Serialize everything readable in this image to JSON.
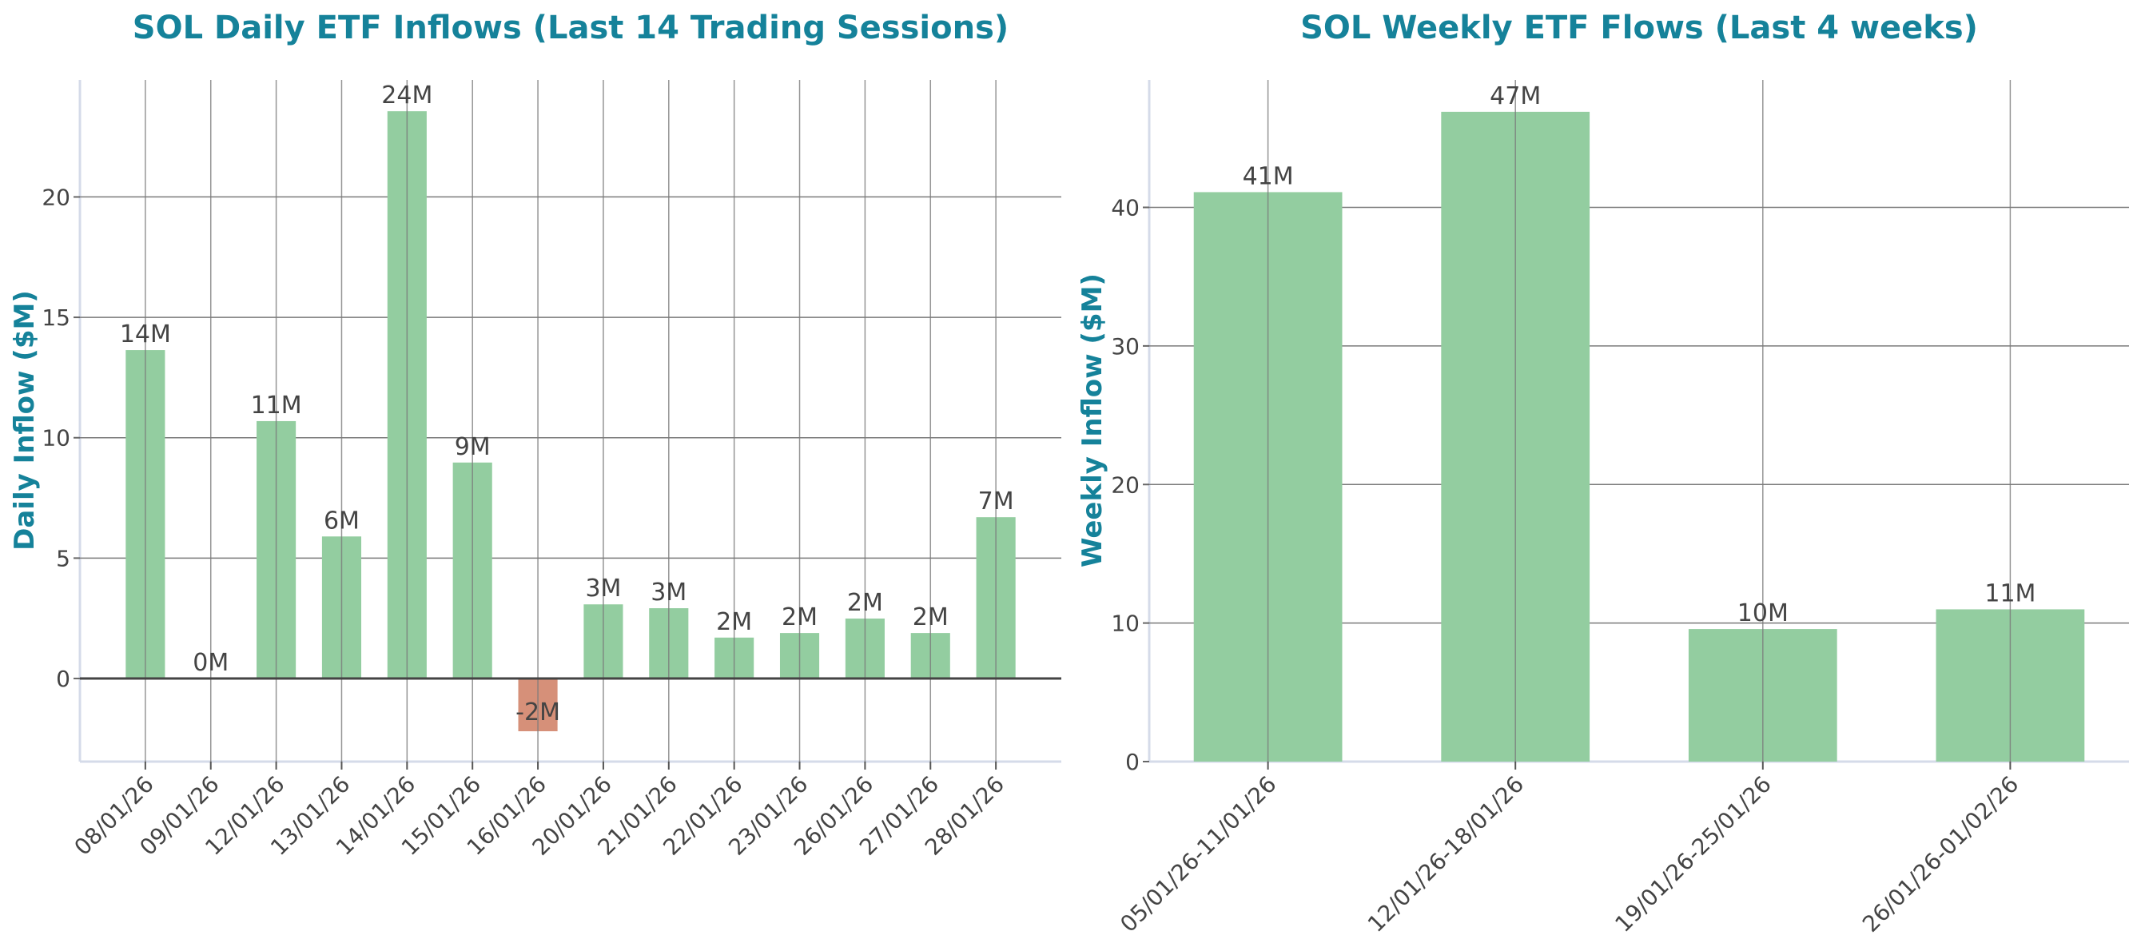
{
  "colors": {
    "title": "#15829a",
    "positive": "#93cda0",
    "negative": "#d69079",
    "text": "#444444",
    "grid": "#7a7a7a",
    "spine": "#d5dbe9"
  },
  "chart_data": [
    {
      "type": "bar",
      "title": "SOL Daily ETF Inflows (Last 14 Trading Sessions)",
      "xlabel": "",
      "ylabel": "Daily Inflow ($M)",
      "categories": [
        "08/01/26",
        "09/01/26",
        "12/01/26",
        "13/01/26",
        "14/01/26",
        "15/01/26",
        "16/01/26",
        "20/01/26",
        "21/01/26",
        "22/01/26",
        "23/01/26",
        "26/01/26",
        "27/01/26",
        "28/01/26"
      ],
      "values": [
        13.64,
        0,
        10.69,
        5.9,
        23.56,
        8.97,
        -2.19,
        3.08,
        2.92,
        1.7,
        1.89,
        2.49,
        1.89,
        6.7
      ],
      "data_labels": [
        "14M",
        "0M",
        "11M",
        "6M",
        "24M",
        "9M",
        "-2M",
        "3M",
        "3M",
        "2M",
        "2M",
        "2M",
        "2M",
        "7M"
      ],
      "ylim": [
        -3.45,
        24.86
      ],
      "yticks": [
        0,
        5,
        10,
        15,
        20
      ],
      "grid": true,
      "zero_line": true
    },
    {
      "type": "bar",
      "title": "SOL Weekly ETF Flows (Last 4 weeks)",
      "xlabel": "",
      "ylabel": "Weekly Inflow ($M)",
      "categories": [
        "05/01/26-11/01/26",
        "12/01/26-18/01/26",
        "19/01/26-25/01/26",
        "26/01/26-01/02/26"
      ],
      "values": [
        41.1,
        46.9,
        9.57,
        10.99
      ],
      "data_labels": [
        "41M",
        "47M",
        "10M",
        "11M"
      ],
      "ylim": [
        0,
        49.2
      ],
      "yticks": [
        0,
        10,
        20,
        30,
        40
      ],
      "grid": true
    }
  ]
}
